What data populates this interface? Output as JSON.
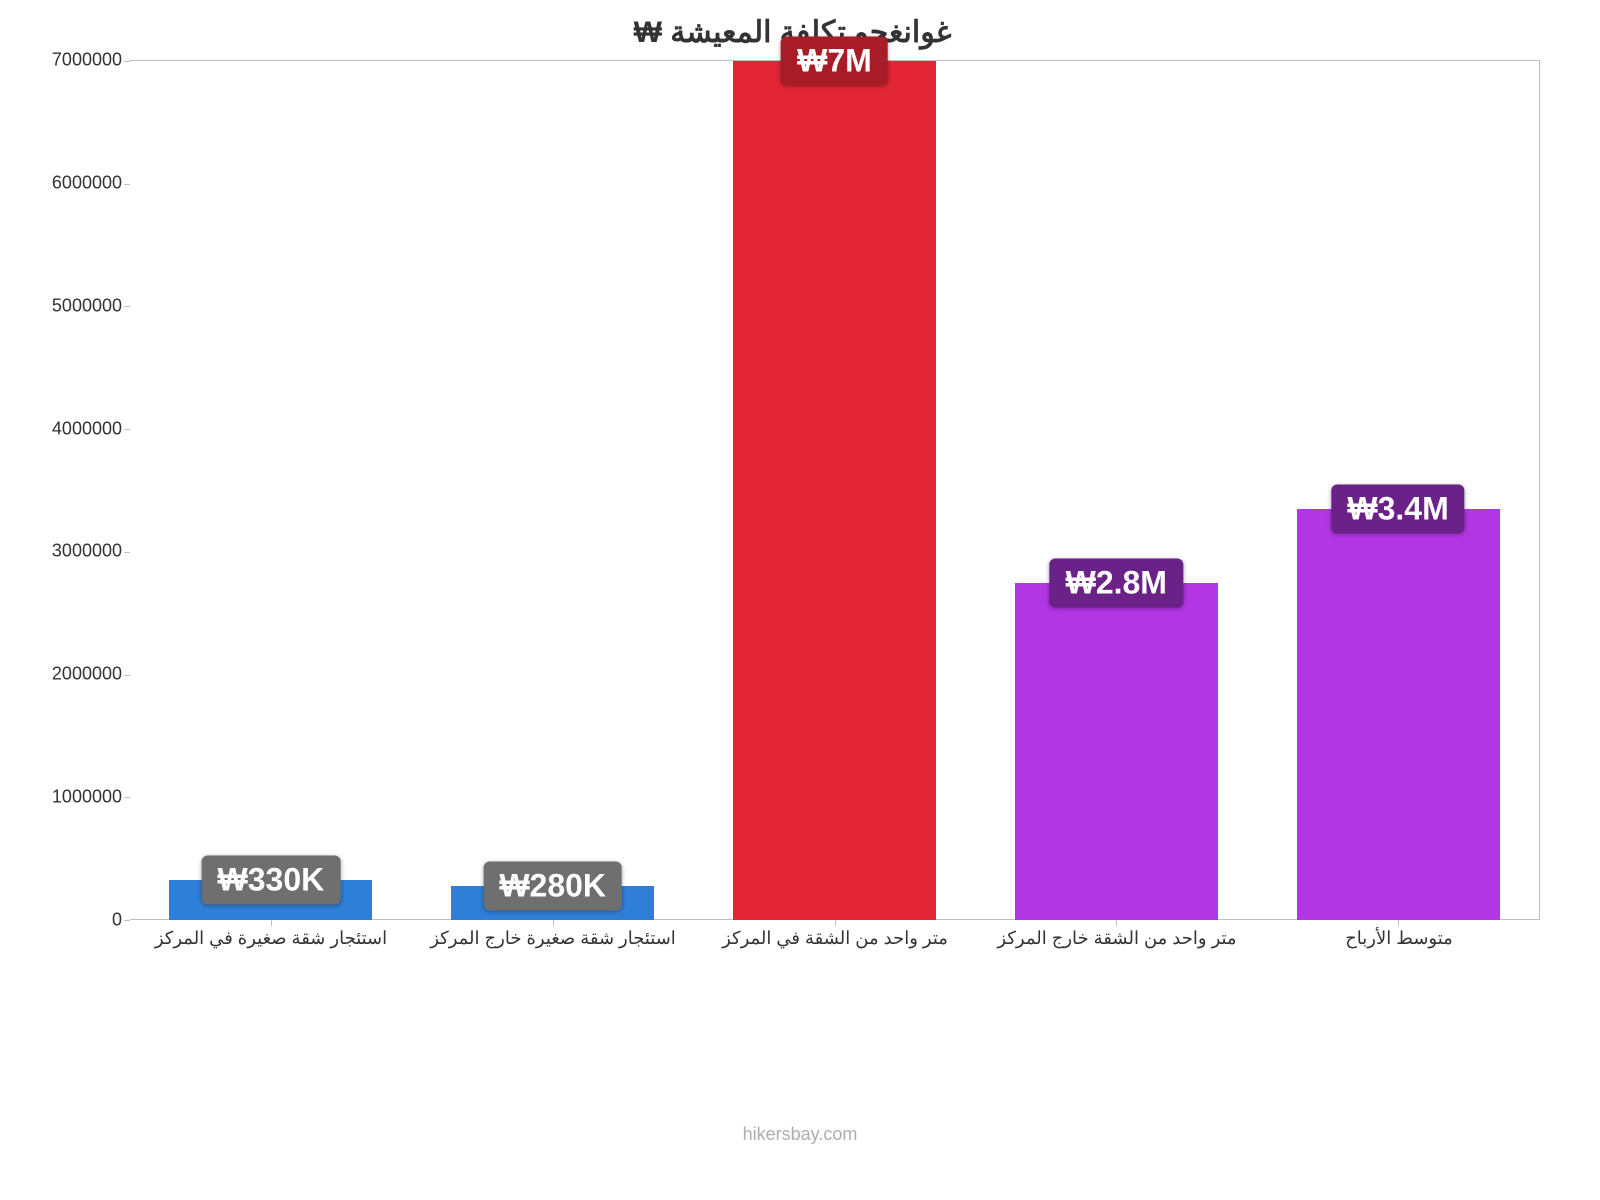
{
  "chart": {
    "type": "bar",
    "title": "غوانغجو تكلفة المعيشة ₩",
    "title_fontsize": 30,
    "title_color": "#333333",
    "background_color": "#ffffff",
    "axis_color": "#bfbfbf",
    "label_color": "#333333",
    "label_fontsize": 18,
    "ylim": [
      0,
      7000000
    ],
    "yticks": [
      0,
      1000000,
      2000000,
      3000000,
      4000000,
      5000000,
      6000000,
      7000000
    ],
    "bar_width": 0.72,
    "value_badge": {
      "fontsize": 32,
      "text_color": "#ffffff",
      "border_radius": 6
    },
    "categories": [
      {
        "label": "استئجار شقة صغيرة في المركز",
        "value": 330000,
        "display": "₩330K",
        "bar_color": "#2f7ed8",
        "badge_color": "#6f6f6f"
      },
      {
        "label": "استئجار شقة صغيرة خارج المركز",
        "value": 280000,
        "display": "₩280K",
        "bar_color": "#2f7ed8",
        "badge_color": "#6f6f6f"
      },
      {
        "label": "متر واحد من الشقة في المركز",
        "value": 7000000,
        "display": "₩7M",
        "bar_color": "#e32636",
        "badge_color": "#a81c28"
      },
      {
        "label": "متر واحد من الشقة خارج المركز",
        "value": 2750000,
        "display": "₩2.8M",
        "bar_color": "#b236e3",
        "badge_color": "#6a2188"
      },
      {
        "label": "متوسط الأرباح",
        "value": 3350000,
        "display": "₩3.4M",
        "bar_color": "#b236e3",
        "badge_color": "#6a2188"
      }
    ]
  },
  "attribution": "hikersbay.com"
}
